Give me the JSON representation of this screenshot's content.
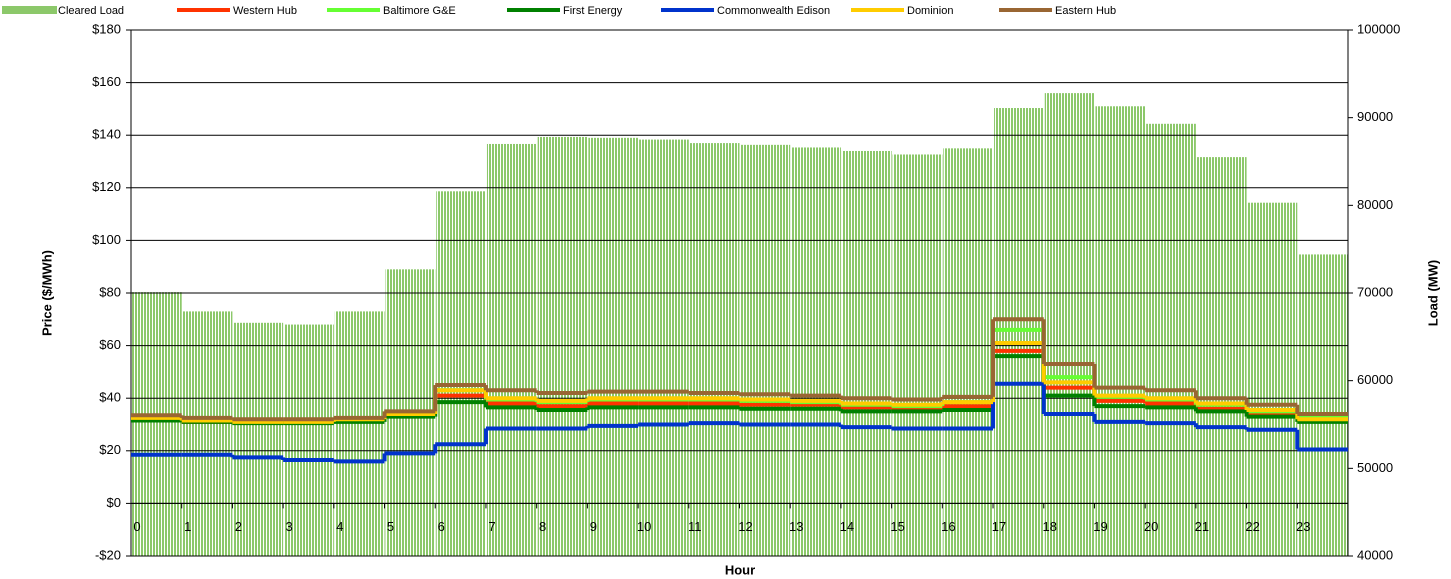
{
  "chart_data": {
    "type": "combo",
    "xlabel": "Hour",
    "ylabel": "Price ($/MWh)",
    "y2label": "Load (MW)",
    "x": [
      0,
      1,
      2,
      3,
      4,
      5,
      6,
      7,
      8,
      9,
      10,
      11,
      12,
      13,
      14,
      15,
      16,
      17,
      18,
      19,
      20,
      21,
      22,
      23
    ],
    "xlim": [
      0,
      24
    ],
    "xticks": [
      0,
      1,
      2,
      3,
      4,
      5,
      6,
      7,
      8,
      9,
      10,
      11,
      12,
      13,
      14,
      15,
      16,
      17,
      18,
      19,
      20,
      21,
      22,
      23
    ],
    "ylim": [
      -20,
      180
    ],
    "yticks": [
      {
        "value": -20,
        "label": "-$20"
      },
      {
        "value": 0,
        "label": "$0"
      },
      {
        "value": 20,
        "label": "$20"
      },
      {
        "value": 40,
        "label": "$40"
      },
      {
        "value": 60,
        "label": "$60"
      },
      {
        "value": 80,
        "label": "$80"
      },
      {
        "value": 100,
        "label": "$100"
      },
      {
        "value": 120,
        "label": "$120"
      },
      {
        "value": 140,
        "label": "$140"
      },
      {
        "value": 160,
        "label": "$160"
      },
      {
        "value": 180,
        "label": "$180"
      }
    ],
    "y2lim": [
      40000,
      100000
    ],
    "y2ticks": [
      40000,
      50000,
      60000,
      70000,
      80000,
      90000,
      100000
    ],
    "grid": true,
    "legend": "top",
    "series": [
      {
        "name": "Cleared Load",
        "type": "bar",
        "axis": "y2",
        "color": "#8cc86a",
        "values": [
          70100,
          67900,
          66600,
          66400,
          67900,
          72700,
          81600,
          87000,
          87800,
          87700,
          87500,
          87100,
          86900,
          86600,
          86200,
          85800,
          86500,
          91100,
          92800,
          91300,
          89300,
          85500,
          80300,
          74400
        ]
      },
      {
        "name": "Western Hub",
        "type": "step",
        "color": "#ff3300",
        "values": [
          32,
          31,
          31,
          31,
          32,
          34,
          41,
          38,
          37,
          38,
          38,
          38,
          37.5,
          37.5,
          36.5,
          36,
          37,
          58,
          44,
          39,
          38,
          36,
          34,
          32
        ]
      },
      {
        "name": "Baltimore G&E",
        "type": "step",
        "color": "#66ff33",
        "values": [
          32.5,
          32,
          31.5,
          31.5,
          32,
          34.5,
          43,
          39.5,
          38.5,
          39.5,
          39.5,
          39.5,
          39,
          38.5,
          37.5,
          37,
          38.5,
          66,
          48,
          40.5,
          39.5,
          37.5,
          35,
          32.5
        ]
      },
      {
        "name": "First Energy",
        "type": "step",
        "color": "#008000",
        "values": [
          31.5,
          31,
          30.5,
          30.5,
          31,
          33,
          38.5,
          36.5,
          35.5,
          36.5,
          36.5,
          36.5,
          36,
          36,
          35,
          35,
          35.5,
          56,
          41,
          37,
          36.5,
          35,
          33,
          31
        ]
      },
      {
        "name": "Commonwealth Edison",
        "type": "step",
        "color": "#0033cc",
        "values": [
          18.5,
          18.5,
          17.5,
          16.5,
          16,
          19,
          22.5,
          28.5,
          28.5,
          29.5,
          30,
          30.5,
          30,
          30,
          29,
          28.5,
          28.5,
          45.5,
          34,
          31,
          30.5,
          29,
          28,
          20.5
        ]
      },
      {
        "name": "Dominion",
        "type": "step",
        "color": "#ffcc00",
        "values": [
          32.5,
          31.5,
          31,
          31,
          32,
          34,
          43,
          40,
          39,
          40,
          40,
          40,
          39.5,
          39,
          38,
          37.5,
          38.5,
          61,
          46,
          41,
          40,
          38,
          35.5,
          32
        ]
      },
      {
        "name": "Eastern Hub",
        "type": "step",
        "color": "#996633",
        "values": [
          33.5,
          32.5,
          32,
          32,
          32.5,
          35,
          45,
          43,
          42,
          42.5,
          42.5,
          42,
          41.5,
          41,
          40,
          39.5,
          40.5,
          70,
          53,
          44,
          43,
          40,
          37.5,
          34
        ]
      }
    ]
  }
}
